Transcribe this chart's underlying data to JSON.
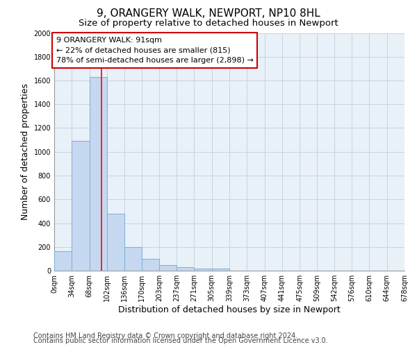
{
  "title1": "9, ORANGERY WALK, NEWPORT, NP10 8HL",
  "title2": "Size of property relative to detached houses in Newport",
  "xlabel": "Distribution of detached houses by size in Newport",
  "ylabel": "Number of detached properties",
  "bar_values": [
    165,
    1090,
    1630,
    480,
    200,
    100,
    45,
    30,
    20,
    20,
    0,
    0,
    0,
    0,
    0,
    0,
    0,
    0,
    0,
    0
  ],
  "bin_edges": [
    0,
    34,
    68,
    102,
    136,
    170,
    203,
    237,
    271,
    305,
    339,
    373,
    407,
    441,
    475,
    509,
    542,
    576,
    610,
    644,
    678
  ],
  "tick_labels": [
    "0sqm",
    "34sqm",
    "68sqm",
    "102sqm",
    "136sqm",
    "170sqm",
    "203sqm",
    "237sqm",
    "271sqm",
    "305sqm",
    "339sqm",
    "373sqm",
    "407sqm",
    "441sqm",
    "475sqm",
    "509sqm",
    "542sqm",
    "576sqm",
    "610sqm",
    "644sqm",
    "678sqm"
  ],
  "bar_color": "#c5d8f0",
  "bar_edge_color": "#7bafd4",
  "red_line_x": 91,
  "ylim": [
    0,
    2000
  ],
  "yticks": [
    0,
    200,
    400,
    600,
    800,
    1000,
    1200,
    1400,
    1600,
    1800,
    2000
  ],
  "annotation_text": "9 ORANGERY WALK: 91sqm\n← 22% of detached houses are smaller (815)\n78% of semi-detached houses are larger (2,898) →",
  "annotation_box_color": "#ffffff",
  "annotation_box_edge": "#cc0000",
  "footer1": "Contains HM Land Registry data © Crown copyright and database right 2024.",
  "footer2": "Contains public sector information licensed under the Open Government Licence v3.0.",
  "bg_color": "#ffffff",
  "plot_bg_color": "#e8f0f8",
  "grid_color": "#c0cfe0",
  "title1_fontsize": 11,
  "title2_fontsize": 9.5,
  "axis_label_fontsize": 9,
  "tick_fontsize": 7,
  "annotation_fontsize": 8,
  "footer_fontsize": 7
}
